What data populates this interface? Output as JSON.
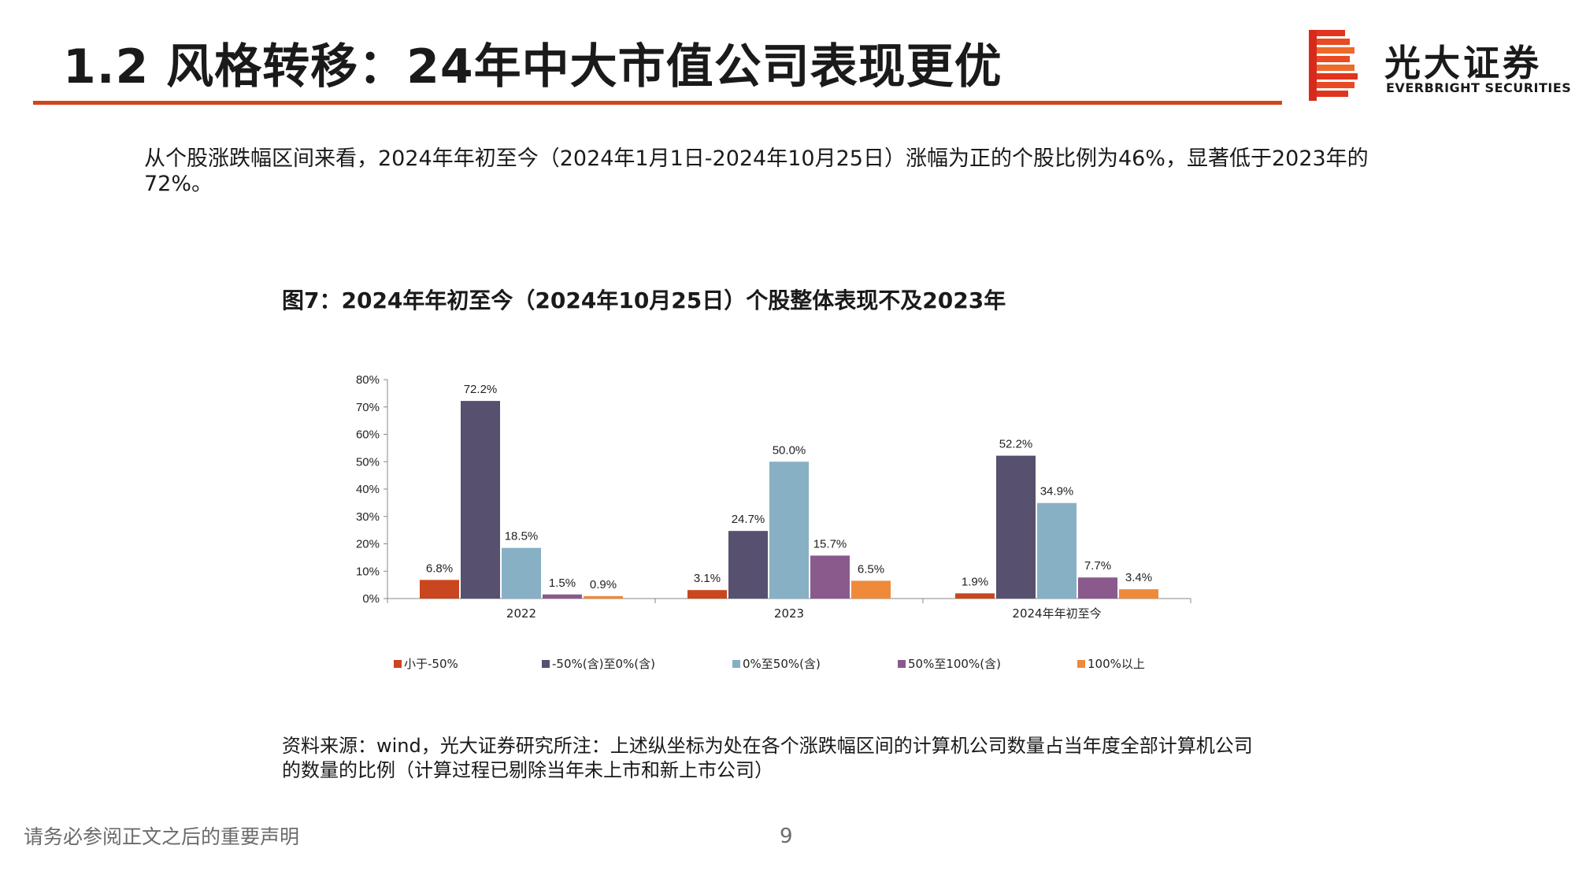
{
  "header": {
    "title": "1.2 风格转移：24年中大市值公司表现更优",
    "logo_cn": "光大证券",
    "logo_en": "EVERBRIGHT SECURITIES"
  },
  "intro_text": "从个股涨跌幅区间来看，2024年年初至今（2024年1月1日-2024年10月25日）涨幅为正的个股比例为46%，显著低于2023年的72%。",
  "figure_title": "图7：2024年年初至今（2024年10月25日）个股整体表现不及2023年",
  "chart_data": {
    "type": "bar",
    "title": "",
    "xlabel": "",
    "ylabel": "",
    "ylim": [
      0,
      80
    ],
    "yticks": [
      "0%",
      "10%",
      "20%",
      "30%",
      "40%",
      "50%",
      "60%",
      "70%",
      "80%"
    ],
    "categories": [
      "2022",
      "2023",
      "2024年年初至今"
    ],
    "series": [
      {
        "name": "小于-50%",
        "color": "#c9461f",
        "values": [
          6.8,
          3.1,
          1.9
        ],
        "labels": [
          "6.8%",
          "3.1%",
          "1.9%"
        ]
      },
      {
        "name": "-50%(含)至0%(含)",
        "color": "#57506f",
        "values": [
          72.2,
          24.7,
          52.2
        ],
        "labels": [
          "72.2%",
          "24.7%",
          "52.2%"
        ]
      },
      {
        "name": "0%至50%(含)",
        "color": "#87b0c4",
        "values": [
          18.5,
          50.0,
          34.9
        ],
        "labels": [
          "18.5%",
          "50.0%",
          "34.9%"
        ]
      },
      {
        "name": "50%至100%(含)",
        "color": "#8a5a8c",
        "values": [
          1.5,
          15.7,
          7.7
        ],
        "labels": [
          "1.5%",
          "15.7%",
          "7.7%"
        ]
      },
      {
        "name": "100%以上",
        "color": "#ee8a3a",
        "values": [
          0.9,
          6.5,
          3.4
        ],
        "labels": [
          "0.9%",
          "6.5%",
          "3.4%"
        ]
      }
    ],
    "grid": false,
    "legend_position": "bottom"
  },
  "source_note": "资料来源：wind，光大证券研究所注：上述纵坐标为处在各个涨跌幅区间的计算机公司数量占当年度全部计算机公司的数量的比例（计算过程已剔除当年未上市和新上市公司）",
  "footer": {
    "disclaimer": "请务必参阅正文之后的重要声明",
    "page_number": "9"
  }
}
